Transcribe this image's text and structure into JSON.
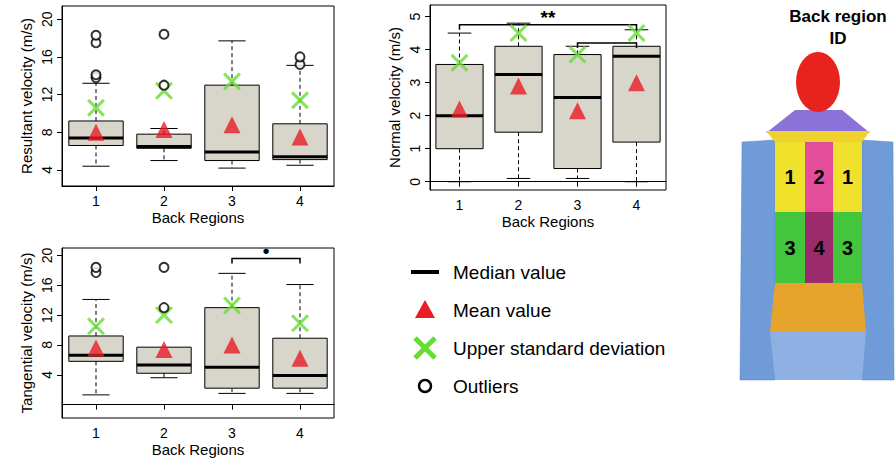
{
  "chart_data": [
    {
      "type": "boxplot",
      "y_label": "Resultant velocity (m/s)",
      "x_label": "Back Regions",
      "categories": [
        "1",
        "2",
        "3",
        "4"
      ],
      "ylim": [
        2.3,
        21.4
      ],
      "yticks": [
        4,
        8,
        12,
        16,
        20
      ],
      "series": [
        {
          "type": "boxplot",
          "color": "#d8d6cb",
          "values": [
            [
              4.4,
              6.6,
              7.4,
              9.2,
              13.2
            ],
            [
              5.0,
              6.3,
              6.5,
              7.8,
              8.4
            ],
            [
              4.2,
              5.0,
              5.9,
              13.0,
              17.7
            ],
            [
              4.5,
              5.1,
              5.4,
              8.9,
              15.1
            ]
          ]
        },
        {
          "type": "scatter",
          "marker": "triangle",
          "color": "#ea1c24",
          "values": [
            8.0,
            8.3,
            8.8,
            7.5
          ]
        },
        {
          "type": "scatter",
          "marker": "x",
          "color": "#66dd33",
          "values": [
            10.6,
            12.4,
            13.4,
            11.4
          ]
        },
        {
          "type": "scatter",
          "marker": "circle",
          "color": "#000000",
          "values": [
            [
              13.8,
              14.1,
              17.5,
              18.3
            ],
            [
              13.0,
              18.4
            ],
            [],
            [
              15.2,
              16.0
            ]
          ]
        }
      ]
    },
    {
      "type": "boxplot",
      "y_label": "Normal velocity (m/s)",
      "x_label": "Back Regions",
      "categories": [
        "1",
        "2",
        "3",
        "4"
      ],
      "ylim": [
        -0.25,
        5.35
      ],
      "yticks": [
        0,
        1,
        2,
        3,
        4,
        5
      ],
      "series": [
        {
          "type": "boxplot",
          "color": "#d8d6cb",
          "values": [
            [
              0.0,
              1.0,
              2.0,
              3.55,
              4.5
            ],
            [
              0.1,
              1.5,
              3.25,
              4.1,
              4.8
            ],
            [
              0.1,
              0.4,
              2.55,
              3.85,
              4.1
            ],
            [
              0.0,
              1.2,
              3.8,
              4.1,
              4.6
            ]
          ]
        },
        {
          "type": "scatter",
          "marker": "triangle",
          "color": "#ea1c24",
          "values": [
            2.2,
            2.9,
            2.15,
            3.0
          ]
        },
        {
          "type": "scatter",
          "marker": "x",
          "color": "#66dd33",
          "values": [
            3.6,
            4.5,
            3.85,
            4.5
          ]
        }
      ],
      "significance": [
        {
          "from": "1",
          "to": "4",
          "y": 4.75,
          "label": "**"
        },
        {
          "from": "3",
          "to": "4",
          "y": 4.2
        }
      ]
    },
    {
      "type": "boxplot",
      "y_label": "Tangential velocity (m/s)",
      "x_label": "Back Regions",
      "categories": [
        "1",
        "2",
        "3",
        "4"
      ],
      "ylim": [
        -1.8,
        21
      ],
      "yticks": [
        4,
        8,
        12,
        16,
        20
      ],
      "series": [
        {
          "type": "boxplot",
          "color": "#d8d6cb",
          "values": [
            [
              1.3,
              5.8,
              6.6,
              9.2,
              14.1
            ],
            [
              3.6,
              4.2,
              5.3,
              7.7,
              7.7
            ],
            [
              1.5,
              2.2,
              5.0,
              13.0,
              17.6
            ],
            [
              1.5,
              2.2,
              3.9,
              8.9,
              16.1
            ]
          ]
        },
        {
          "type": "scatter",
          "marker": "triangle",
          "color": "#ea1c24",
          "values": [
            7.6,
            7.4,
            8.0,
            6.2
          ]
        },
        {
          "type": "scatter",
          "marker": "x",
          "color": "#66dd33",
          "values": [
            10.5,
            12.0,
            13.3,
            10.9
          ]
        },
        {
          "type": "scatter",
          "marker": "circle",
          "color": "#000000",
          "values": [
            [
              17.7,
              18.4
            ],
            [
              13.0,
              18.4
            ],
            [],
            []
          ]
        }
      ],
      "significance": [
        {
          "from": "3",
          "to": "4",
          "y": 19.6,
          "label": "•"
        }
      ]
    }
  ],
  "legend_items": [
    {
      "label": "Median value",
      "marker": "line",
      "color": "#000000"
    },
    {
      "label": "Mean value",
      "marker": "triangle",
      "color": "#ea1c24"
    },
    {
      "label": "Upper standard deviation",
      "marker": "x",
      "color": "#66dd33"
    },
    {
      "label": "Outliers",
      "marker": "circle",
      "color": "#000000"
    }
  ],
  "region_map": {
    "title": "Back region ID",
    "rows": [
      [
        "1",
        "2",
        "1"
      ],
      [
        "3",
        "4",
        "3"
      ]
    ]
  }
}
